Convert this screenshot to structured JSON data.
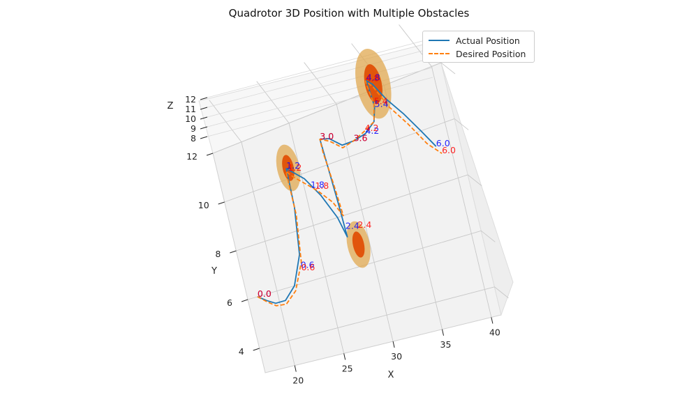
{
  "chart_data": {
    "type": "line",
    "title": "Quadrotor 3D Position with Multiple Obstacles",
    "xlabel": "X",
    "ylabel": "Y",
    "zlabel": "Z",
    "xlim": [
      17,
      41
    ],
    "ylim": [
      3,
      12
    ],
    "zlim": [
      7.5,
      12
    ],
    "x_ticks": [
      20,
      25,
      30,
      35,
      40
    ],
    "y_ticks": [
      4,
      6,
      8,
      10,
      12
    ],
    "z_ticks": [
      8,
      9,
      10,
      11,
      12
    ],
    "grid": true,
    "legend_position": "top-right",
    "series": [
      {
        "name": "Actual Position",
        "color": "#1f77b4",
        "style": "solid",
        "points": [
          [
            18.0,
            6.0
          ],
          [
            18.8,
            5.75
          ],
          [
            19.6,
            5.55
          ],
          [
            20.6,
            5.55
          ],
          [
            21.8,
            6.0
          ],
          [
            23.0,
            7.1
          ],
          [
            23.6,
            8.9
          ],
          [
            23.7,
            10.4
          ],
          [
            24.2,
            10.2
          ],
          [
            25.2,
            9.8
          ],
          [
            26.4,
            9.0
          ],
          [
            27.5,
            8.0
          ],
          [
            28.0,
            7.2
          ],
          [
            27.9,
            8.5
          ],
          [
            27.7,
            10.2
          ],
          [
            27.6,
            11.0
          ],
          [
            28.5,
            10.9
          ],
          [
            29.6,
            10.5
          ],
          [
            30.8,
            10.5
          ],
          [
            32.1,
            10.6
          ],
          [
            33.2,
            10.9
          ],
          [
            33.6,
            11.4
          ],
          [
            33.4,
            12.4
          ],
          [
            33.9,
            12.2
          ],
          [
            34.9,
            11.5
          ],
          [
            36.2,
            10.8
          ],
          [
            37.5,
            10.0
          ],
          [
            38.6,
            9.3
          ]
        ]
      },
      {
        "name": "Desired Position",
        "color": "#ff7f0e",
        "style": "dashed",
        "points": [
          [
            18.0,
            6.0
          ],
          [
            18.8,
            5.7
          ],
          [
            19.6,
            5.45
          ],
          [
            20.6,
            5.4
          ],
          [
            21.8,
            5.8
          ],
          [
            23.0,
            6.8
          ],
          [
            23.6,
            8.6
          ],
          [
            23.6,
            10.3
          ],
          [
            24.2,
            10.0
          ],
          [
            25.2,
            9.6
          ],
          [
            26.2,
            9.2
          ],
          [
            27.4,
            8.6
          ],
          [
            28.1,
            8.0
          ],
          [
            27.9,
            9.2
          ],
          [
            27.6,
            10.5
          ],
          [
            27.6,
            11.0
          ],
          [
            28.5,
            10.8
          ],
          [
            29.6,
            10.4
          ],
          [
            30.8,
            10.5
          ],
          [
            32.1,
            10.7
          ],
          [
            33.2,
            10.9
          ],
          [
            33.6,
            11.5
          ],
          [
            33.3,
            12.4
          ],
          [
            33.9,
            12.1
          ],
          [
            35.0,
            11.2
          ],
          [
            36.4,
            10.4
          ],
          [
            37.8,
            9.5
          ],
          [
            39.0,
            9.0
          ]
        ]
      }
    ],
    "time_labels_actual": [
      {
        "text": "0.0",
        "x": 18.0,
        "y": 6.0,
        "color": "#0000ff"
      },
      {
        "text": "0.6",
        "x": 22.8,
        "y": 6.6,
        "color": "#0000ff"
      },
      {
        "text": "1.2",
        "x": 23.7,
        "y": 10.4,
        "color": "#0000ff"
      },
      {
        "text": "1.8",
        "x": 25.6,
        "y": 9.4,
        "color": "#0000ff"
      },
      {
        "text": "2.4",
        "x": 28.0,
        "y": 7.5,
        "color": "#0000ff"
      },
      {
        "text": "3.0",
        "x": 27.6,
        "y": 11.0,
        "color": "#0000ff"
      },
      {
        "text": "3.6",
        "x": 30.8,
        "y": 10.5,
        "color": "#0000ff"
      },
      {
        "text": "4.2",
        "x": 32.1,
        "y": 10.6,
        "color": "#0000ff"
      },
      {
        "text": "4.8",
        "x": 33.4,
        "y": 12.4,
        "color": "#0000ff"
      },
      {
        "text": "5.4",
        "x": 33.6,
        "y": 11.4,
        "color": "#0000ff"
      },
      {
        "text": "6.0",
        "x": 38.6,
        "y": 9.3,
        "color": "#0000ff"
      }
    ],
    "time_labels_desired": [
      {
        "text": "0.0",
        "x": 18.0,
        "y": 6.0,
        "color": "#ff0000"
      },
      {
        "text": "0.6",
        "x": 22.8,
        "y": 6.5,
        "color": "#ff0000"
      },
      {
        "text": "1.2",
        "x": 23.8,
        "y": 10.3,
        "color": "#ff0000"
      },
      {
        "text": "1.8",
        "x": 26.0,
        "y": 9.3,
        "color": "#ff0000"
      },
      {
        "text": "2.4",
        "x": 29.2,
        "y": 7.4,
        "color": "#ff0000"
      },
      {
        "text": "3.0",
        "x": 27.6,
        "y": 11.0,
        "color": "#ff0000"
      },
      {
        "text": "3.6",
        "x": 30.8,
        "y": 10.5,
        "color": "#ff0000"
      },
      {
        "text": "4.2",
        "x": 32.1,
        "y": 10.7,
        "color": "#ff0000"
      },
      {
        "text": "4.8",
        "x": 33.3,
        "y": 12.4,
        "color": "#ff0000"
      },
      {
        "text": "5.4",
        "x": 33.6,
        "y": 11.5,
        "color": "#ff0000"
      },
      {
        "text": "6.0",
        "x": 39.0,
        "y": 9.0,
        "color": "#ff0000"
      }
    ],
    "obstacles": [
      {
        "x": 23.9,
        "y": 10.4,
        "outer_color": "#e0a850",
        "inner_color": "#e04a00"
      },
      {
        "x": 28.9,
        "y": 6.8,
        "outer_color": "#e0a850",
        "inner_color": "#e04a00"
      },
      {
        "x": 34.0,
        "y": 12.2,
        "outer_color": "#e0a850",
        "inner_color": "#e04a00"
      }
    ]
  }
}
